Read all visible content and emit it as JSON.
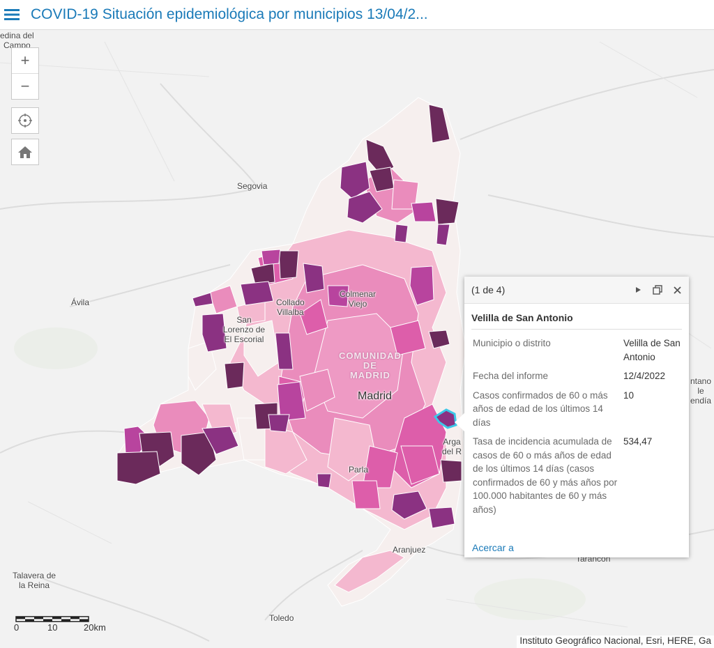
{
  "header": {
    "title": "COVID-19 Situación epidemiológica por municipios 13/04/2..."
  },
  "controls": {
    "zoom_in": "+",
    "zoom_out": "−"
  },
  "places": {
    "medina": "edina del\nCampo",
    "segovia": "Segovia",
    "avila": "Ávila",
    "collado": "Collado\nVillalba",
    "colmenar": "Colmenar\nViejo",
    "san_lorenzo": "San\nLorenzo de\nEl Escorial",
    "comunidad": "COMUNIDAD\nDE\nMADRID",
    "madrid": "Madrid",
    "arganda": "Arga\ndel R",
    "parla": "Parla",
    "aranjuez": "Aranjuez",
    "tarancon": "Tarancón",
    "talavera": "Talavera de\nla Reina",
    "toledo": "Toledo",
    "fontana": "ntano\nle\nendía"
  },
  "popup": {
    "counter": "(1 de 4)",
    "title": "Velilla de San Antonio",
    "fields": [
      {
        "label": "Municipio o distrito",
        "value": "Velilla de San Antonio"
      },
      {
        "label": "Fecha del informe",
        "value": "12/4/2022"
      },
      {
        "label": "Casos confirmados de 60 o más años de edad de los últimos 14 días",
        "value": "10"
      },
      {
        "label": "Tasa de incidencia acumulada de casos de 60 o más años de edad de los últimos 14 días (casos confirmados de 60 y más años por 100.000 habitantes de 60 y más años)",
        "value": "534,47"
      }
    ],
    "zoom_link": "Acercar a"
  },
  "scale": {
    "labels": [
      "0",
      "10",
      "20km"
    ]
  },
  "attribution": "Instituto Geográfico Nacional, Esri, HERE, Ga",
  "colors": {
    "accent": "#1a7ab8",
    "class_1": "#f6efee",
    "class_2": "#f4b8cf",
    "class_3": "#ea8cbc",
    "class_4": "#dd5eaa",
    "class_5": "#b8449e",
    "class_6": "#8b3282",
    "class_7": "#6b2a5b",
    "highlight": "#3cc8e8"
  }
}
